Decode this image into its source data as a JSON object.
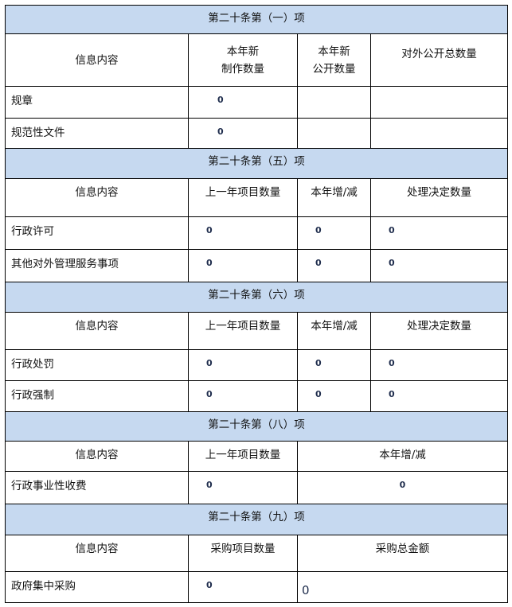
{
  "sections": [
    {
      "title": "第二十条第（一）项",
      "headers": [
        "信息内容",
        "本年新\n制作数量",
        "本年新\n公开数量",
        "对外公开总数量"
      ],
      "rows": [
        {
          "label": "规章",
          "values": [
            "0",
            "",
            ""
          ]
        },
        {
          "label": "规范性文件",
          "values": [
            "0",
            "",
            ""
          ]
        }
      ]
    },
    {
      "title": "第二十条第（五）项",
      "headers": [
        "信息内容",
        "上一年项目数量",
        "本年增/减",
        "处理决定数量"
      ],
      "rows": [
        {
          "label": "行政许可",
          "values": [
            "0",
            "0",
            "0"
          ]
        },
        {
          "label": "其他对外管理服务事项",
          "values": [
            "0",
            "0",
            "0"
          ]
        }
      ]
    },
    {
      "title": "第二十条第（六）项",
      "headers": [
        "信息内容",
        "上一年项目数量",
        "本年增/减",
        "处理决定数量"
      ],
      "rows": [
        {
          "label": "行政处罚",
          "values": [
            "0",
            "0",
            "0"
          ]
        },
        {
          "label": "行政强制",
          "values": [
            "0",
            "0",
            "0"
          ]
        }
      ]
    },
    {
      "title": "第二十条第（八）项",
      "headers": [
        "信息内容",
        "上一年项目数量",
        "本年增/减"
      ],
      "rows": [
        {
          "label": "行政事业性收费",
          "values": [
            "0",
            "0"
          ]
        }
      ]
    },
    {
      "title": "第二十条第（九）项",
      "headers": [
        "信息内容",
        "采购项目数量",
        "采购总金额"
      ],
      "rows": [
        {
          "label": "政府集中采购",
          "values": [
            "0",
            "0"
          ]
        }
      ]
    }
  ],
  "colors": {
    "section_header_bg": "#c6d9f0",
    "value_text": "#1f2d4d"
  }
}
